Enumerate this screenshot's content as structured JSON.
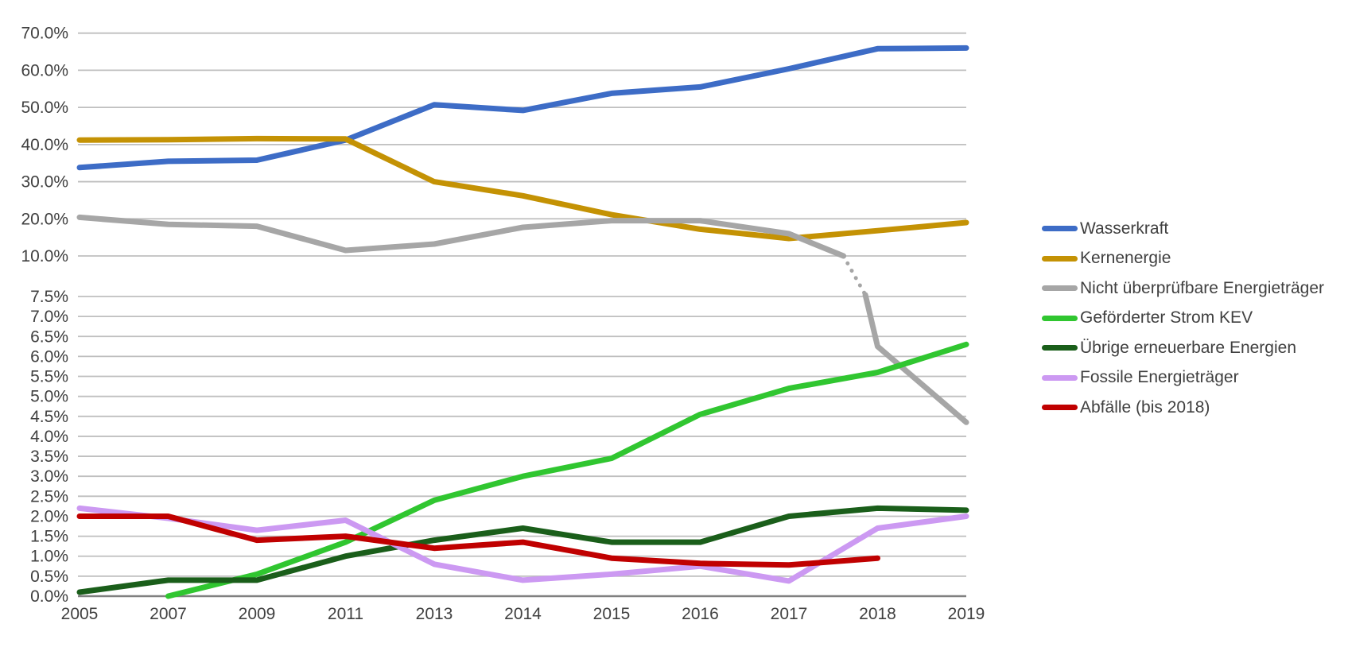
{
  "colors": {
    "background": "#FFFFFF",
    "gridline": "#BFBFBF",
    "axis_line": "#808080",
    "label_text": "#404040"
  },
  "chart_data": {
    "type": "line",
    "title": "",
    "xlabel": "",
    "ylabel": "",
    "grid": true,
    "legend_position": "right",
    "categories": [
      "2005",
      "2007",
      "2009",
      "2011",
      "2013",
      "2014",
      "2015",
      "2016",
      "2017",
      "2018",
      "2019"
    ],
    "y_axis": {
      "broken_scale": true,
      "lower_section": {
        "min": 0,
        "max": 7.5,
        "step": 0.5
      },
      "upper_section": {
        "min": 10,
        "max": 70,
        "step": 10
      },
      "ticks": [
        {
          "value": 70,
          "label": "70.0%"
        },
        {
          "value": 60,
          "label": "60.0%"
        },
        {
          "value": 50,
          "label": "50.0%"
        },
        {
          "value": 40,
          "label": "40.0%"
        },
        {
          "value": 30,
          "label": "30.0%"
        },
        {
          "value": 20,
          "label": "20.0%"
        },
        {
          "value": 10,
          "label": "10.0%"
        },
        {
          "value": 7.5,
          "label": "7.5%"
        },
        {
          "value": 7.0,
          "label": "7.0%"
        },
        {
          "value": 6.5,
          "label": "6.5%"
        },
        {
          "value": 6.0,
          "label": "6.0%"
        },
        {
          "value": 5.5,
          "label": "5.5%"
        },
        {
          "value": 5.0,
          "label": "5.0%"
        },
        {
          "value": 4.5,
          "label": "4.5%"
        },
        {
          "value": 4.0,
          "label": "4.0%"
        },
        {
          "value": 3.5,
          "label": "3.5%"
        },
        {
          "value": 3.0,
          "label": "3.0%"
        },
        {
          "value": 2.5,
          "label": "2.5%"
        },
        {
          "value": 2.0,
          "label": "2.0%"
        },
        {
          "value": 1.5,
          "label": "1.5%"
        },
        {
          "value": 1.0,
          "label": "1.0%"
        },
        {
          "value": 0.5,
          "label": "0.5%"
        },
        {
          "value": 0.0,
          "label": "0.0%"
        }
      ]
    },
    "series": [
      {
        "id": "wasserkraft",
        "name": "Wasserkraft",
        "color": "#3D6CC6",
        "values": [
          33.8,
          35.5,
          35.8,
          41.2,
          50.7,
          49.2,
          53.8,
          55.5,
          60.4,
          65.8,
          66.0
        ]
      },
      {
        "id": "kernenergie",
        "name": "Kernenergie",
        "color": "#C49204",
        "values": [
          41.2,
          41.3,
          41.6,
          41.5,
          30.0,
          26.2,
          21.1,
          17.2,
          14.7,
          16.8,
          19.0
        ]
      },
      {
        "id": "nicht-ueberpruefbare-energietraeger",
        "name": "Nicht überprüfbare Energieträger",
        "color": "#A6A6A6",
        "values": [
          20.4,
          18.5,
          18.0,
          11.5,
          13.2,
          17.7,
          19.5,
          19.5,
          16.0,
          6.25,
          4.35
        ],
        "axis_break": {
          "between_categories": [
            "2017",
            "2018"
          ],
          "solid_to_value": 10,
          "dotted_to_value": 7.6
        }
      },
      {
        "id": "gefoerderter-strom-kev",
        "name": "Geförderter Strom KEV",
        "color": "#30C630",
        "values": [
          null,
          0.0,
          0.55,
          1.35,
          2.4,
          3.0,
          3.45,
          4.55,
          5.2,
          5.6,
          6.3
        ]
      },
      {
        "id": "uebrige-erneuerbare-energien",
        "name": "Übrige erneuerbare Energien",
        "color": "#1A5E1A",
        "values": [
          0.1,
          0.4,
          0.4,
          1.0,
          1.4,
          1.7,
          1.35,
          1.35,
          2.0,
          2.2,
          2.15
        ]
      },
      {
        "id": "fossile-energietraeger",
        "name": "Fossile Energieträger",
        "color": "#CC99F2",
        "values": [
          2.2,
          1.95,
          1.65,
          1.9,
          0.8,
          0.4,
          0.55,
          0.75,
          0.38,
          1.7,
          2.0
        ]
      },
      {
        "id": "abfaelle-bis-2018",
        "name": "Abfälle (bis 2018)",
        "color": "#C00000",
        "values": [
          2.0,
          2.0,
          1.4,
          1.5,
          1.2,
          1.35,
          0.95,
          0.82,
          0.78,
          0.95,
          null
        ]
      }
    ]
  }
}
